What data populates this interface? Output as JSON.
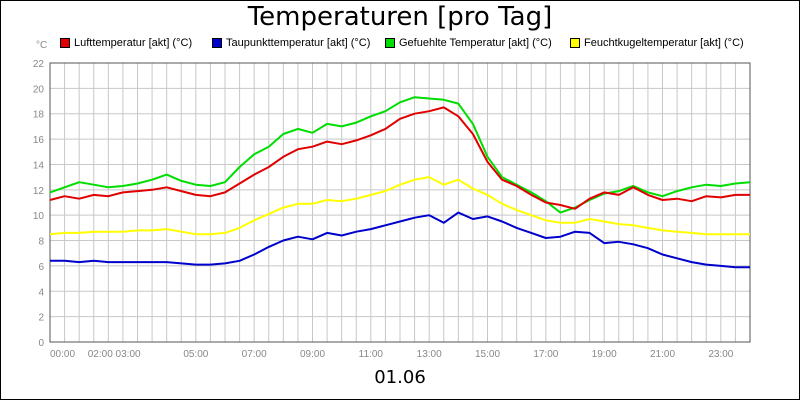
{
  "chart_data": {
    "type": "line",
    "title": "Temperaturen [pro Tag]",
    "y_unit": "°C",
    "date_label": "01.06",
    "ylim": [
      0,
      22
    ],
    "y_ticks": [
      0,
      2,
      4,
      6,
      8,
      10,
      12,
      14,
      16,
      18,
      20,
      22
    ],
    "xlim": [
      0,
      24
    ],
    "x_ticks": [
      {
        "t": 0,
        "label": "00:00"
      },
      {
        "t": 2.2,
        "label": "02:00 03:00"
      },
      {
        "t": 5,
        "label": "05:00"
      },
      {
        "t": 7,
        "label": "07:00"
      },
      {
        "t": 9,
        "label": "09:00"
      },
      {
        "t": 11,
        "label": "11:00"
      },
      {
        "t": 13,
        "label": "13:00"
      },
      {
        "t": 15,
        "label": "15:00"
      },
      {
        "t": 17,
        "label": "17:00"
      },
      {
        "t": 19,
        "label": "19:00"
      },
      {
        "t": 21,
        "label": "21:00"
      },
      {
        "t": 23,
        "label": "23:00"
      }
    ],
    "grid": true,
    "legend_position": "top",
    "series": [
      {
        "name": "Lufttemperatur [akt] (°C)",
        "color": "#e00000",
        "x": [
          0,
          0.5,
          1,
          1.5,
          2,
          2.5,
          3,
          3.5,
          4,
          4.5,
          5,
          5.5,
          6,
          6.5,
          7,
          7.5,
          8,
          8.5,
          9,
          9.5,
          10,
          10.5,
          11,
          11.5,
          12,
          12.5,
          13,
          13.5,
          14,
          14.5,
          15,
          15.5,
          16,
          16.5,
          17,
          17.5,
          18,
          18.5,
          19,
          19.5,
          20,
          20.5,
          21,
          21.5,
          22,
          22.5,
          23,
          23.5,
          24
        ],
        "values": [
          11.2,
          11.5,
          11.3,
          11.6,
          11.5,
          11.8,
          11.9,
          12.0,
          12.2,
          11.9,
          11.6,
          11.5,
          11.8,
          12.5,
          13.2,
          13.8,
          14.6,
          15.2,
          15.4,
          15.8,
          15.6,
          15.9,
          16.3,
          16.8,
          17.6,
          18.0,
          18.2,
          18.5,
          17.8,
          16.4,
          14.2,
          12.8,
          12.3,
          11.6,
          11.0,
          10.8,
          10.5,
          11.3,
          11.8,
          11.6,
          12.2,
          11.6,
          11.2,
          11.3,
          11.1,
          11.5,
          11.4,
          11.6,
          11.6
        ]
      },
      {
        "name": "Taupunkttemperatur [akt] (°C)",
        "color": "#0000cc",
        "x": [
          0,
          0.5,
          1,
          1.5,
          2,
          2.5,
          3,
          3.5,
          4,
          4.5,
          5,
          5.5,
          6,
          6.5,
          7,
          7.5,
          8,
          8.5,
          9,
          9.5,
          10,
          10.5,
          11,
          11.5,
          12,
          12.5,
          13,
          13.5,
          14,
          14.5,
          15,
          15.5,
          16,
          16.5,
          17,
          17.5,
          18,
          18.5,
          19,
          19.5,
          20,
          20.5,
          21,
          21.5,
          22,
          22.5,
          23,
          23.5,
          24
        ],
        "values": [
          6.4,
          6.4,
          6.3,
          6.4,
          6.3,
          6.3,
          6.3,
          6.3,
          6.3,
          6.2,
          6.1,
          6.1,
          6.2,
          6.4,
          6.9,
          7.5,
          8.0,
          8.3,
          8.1,
          8.6,
          8.4,
          8.7,
          8.9,
          9.2,
          9.5,
          9.8,
          10.0,
          9.4,
          10.2,
          9.7,
          9.9,
          9.5,
          9.0,
          8.6,
          8.2,
          8.3,
          8.7,
          8.6,
          7.8,
          7.9,
          7.7,
          7.4,
          6.9,
          6.6,
          6.3,
          6.1,
          6.0,
          5.9,
          5.9
        ]
      },
      {
        "name": "Gefuehlte Temperatur [akt] (°C)",
        "color": "#00dd00",
        "x": [
          0,
          0.5,
          1,
          1.5,
          2,
          2.5,
          3,
          3.5,
          4,
          4.5,
          5,
          5.5,
          6,
          6.5,
          7,
          7.5,
          8,
          8.5,
          9,
          9.5,
          10,
          10.5,
          11,
          11.5,
          12,
          12.5,
          13,
          13.5,
          14,
          14.5,
          15,
          15.5,
          16,
          16.5,
          17,
          17.5,
          18,
          18.5,
          19,
          19.5,
          20,
          20.5,
          21,
          21.5,
          22,
          22.5,
          23,
          23.5,
          24
        ],
        "values": [
          11.8,
          12.2,
          12.6,
          12.4,
          12.2,
          12.3,
          12.5,
          12.8,
          13.2,
          12.7,
          12.4,
          12.3,
          12.6,
          13.8,
          14.8,
          15.4,
          16.4,
          16.8,
          16.5,
          17.2,
          17.0,
          17.3,
          17.8,
          18.2,
          18.9,
          19.3,
          19.2,
          19.1,
          18.8,
          17.2,
          14.6,
          13.0,
          12.4,
          11.8,
          11.1,
          10.2,
          10.6,
          11.2,
          11.7,
          11.9,
          12.3,
          11.8,
          11.5,
          11.9,
          12.2,
          12.4,
          12.3,
          12.5,
          12.6
        ]
      },
      {
        "name": "Feuchtkugeltemperatur [akt] (°C)",
        "color": "#ffff00",
        "x": [
          0,
          0.5,
          1,
          1.5,
          2,
          2.5,
          3,
          3.5,
          4,
          4.5,
          5,
          5.5,
          6,
          6.5,
          7,
          7.5,
          8,
          8.5,
          9,
          9.5,
          10,
          10.5,
          11,
          11.5,
          12,
          12.5,
          13,
          13.5,
          14,
          14.5,
          15,
          15.5,
          16,
          16.5,
          17,
          17.5,
          18,
          18.5,
          19,
          19.5,
          20,
          20.5,
          21,
          21.5,
          22,
          22.5,
          23,
          23.5,
          24
        ],
        "values": [
          8.5,
          8.6,
          8.6,
          8.7,
          8.7,
          8.7,
          8.8,
          8.8,
          8.9,
          8.7,
          8.5,
          8.5,
          8.6,
          9.0,
          9.6,
          10.1,
          10.6,
          10.9,
          10.9,
          11.2,
          11.1,
          11.3,
          11.6,
          11.9,
          12.4,
          12.8,
          13.0,
          12.4,
          12.8,
          12.1,
          11.6,
          10.9,
          10.4,
          10.0,
          9.6,
          9.4,
          9.4,
          9.7,
          9.5,
          9.3,
          9.2,
          9.0,
          8.8,
          8.7,
          8.6,
          8.5,
          8.5,
          8.5,
          8.5
        ]
      }
    ]
  }
}
